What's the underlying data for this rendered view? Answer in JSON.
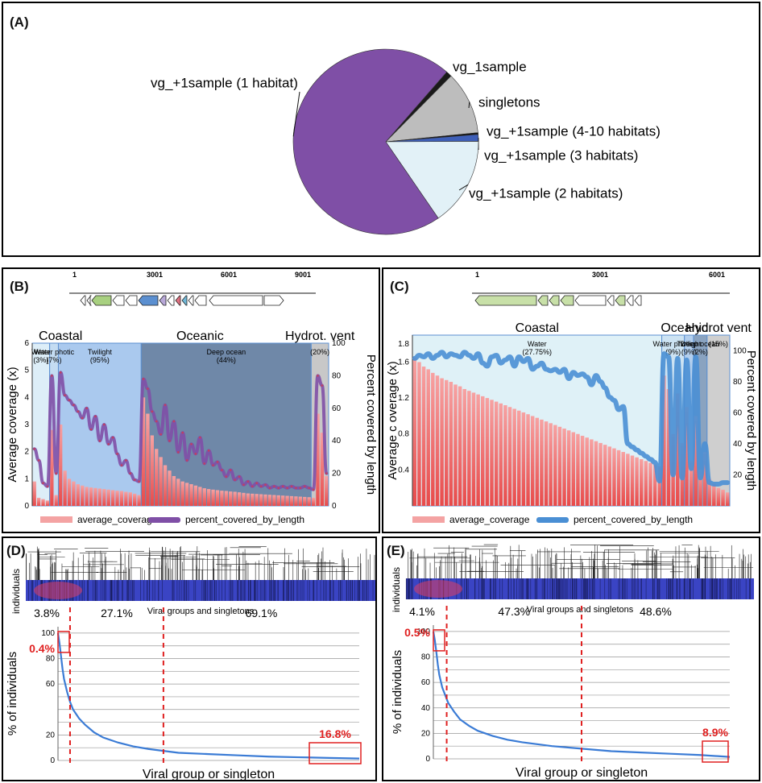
{
  "panels": {
    "A": {
      "label": "(A)"
    },
    "B": {
      "label": "(B)"
    },
    "C": {
      "label": "(C)"
    },
    "D": {
      "label": "(D)"
    },
    "E": {
      "label": "(E)"
    }
  },
  "chart_data": [
    {
      "id": "A",
      "type": "pie",
      "slices": [
        {
          "label": "vg_1sample",
          "value": 1.0,
          "color": "#1a1a1a"
        },
        {
          "label": "singletons",
          "value": 11.0,
          "color": "#bdbdbd"
        },
        {
          "label": "vg_+1sample (4-10 habitats)",
          "value": 0.3,
          "color": "#111111"
        },
        {
          "label": "vg_+1sample (3 habitats)",
          "value": 1.2,
          "color": "#3e5fb8"
        },
        {
          "label": "vg_+1sample (2 habitats)",
          "value": 15.5,
          "color": "#e2f1f7"
        },
        {
          "label": "vg_+1sample (1 habitat)",
          "value": 71.0,
          "color": "#7f4fa6"
        }
      ]
    },
    {
      "id": "B",
      "type": "bar",
      "genome_ticks": [
        "1",
        "3001",
        "6001",
        "9001"
      ],
      "habitats": [
        {
          "name": "Coastal",
          "from": 0,
          "to": 13
        },
        {
          "name": "Oceanic",
          "from": 13,
          "to": 64
        },
        {
          "name": "Hydrot. vent",
          "from": 64,
          "to": 68
        }
      ],
      "zones": [
        {
          "label": "Water (3%)",
          "from": 0,
          "to": 4,
          "color": "#ddeef8"
        },
        {
          "label": "Water photic (7%)",
          "from": 4,
          "to": 6,
          "color": "#c4dcf2"
        },
        {
          "label": "Twilight (95%)",
          "from": 6,
          "to": 25,
          "color": "#aac9ee"
        },
        {
          "label": "Deep ocean (44%)",
          "from": 25,
          "to": 64,
          "color": "#6f88a8"
        },
        {
          "label": "(20%)",
          "from": 64,
          "to": 68,
          "color": "#c8c8c8"
        }
      ],
      "ylabel": "Average coverage (x)",
      "y2label": "Percent covered by length",
      "ylim": [
        0,
        6
      ],
      "yticks": [
        0,
        1,
        2,
        3,
        4,
        5,
        6
      ],
      "y2lim": [
        0,
        100
      ],
      "y2ticks": [
        0,
        20,
        40,
        60,
        80,
        100
      ],
      "series": [
        {
          "name": "average_coverage",
          "color": "#f07070",
          "values": [
            0.9,
            0.3,
            0.25,
            0.2,
            2.8,
            0.4,
            3.0,
            1.3,
            1.0,
            0.9,
            0.8,
            0.75,
            0.7,
            0.68,
            0.66,
            0.64,
            0.62,
            0.6,
            0.58,
            0.56,
            0.55,
            0.52,
            0.5,
            0.45,
            0.4,
            4.0,
            3.4,
            2.6,
            2.1,
            1.8,
            1.5,
            1.3,
            1.1,
            1.0,
            0.9,
            0.85,
            0.8,
            0.75,
            0.7,
            0.65,
            0.62,
            0.6,
            0.58,
            0.56,
            0.55,
            0.53,
            0.52,
            0.5,
            0.48,
            0.46,
            0.45,
            0.44,
            0.43,
            0.42,
            0.41,
            0.4,
            0.39,
            0.38,
            0.37,
            0.36,
            0.35,
            0.34,
            0.33,
            0.32,
            0.3,
            3.4,
            2.7,
            1.1
          ]
        },
        {
          "name": "percent_covered_by_length",
          "color": "#7f4fa6",
          "values": [
            35,
            28,
            14,
            12,
            80,
            20,
            82,
            68,
            65,
            62,
            58,
            54,
            60,
            47,
            55,
            40,
            50,
            38,
            42,
            32,
            25,
            28,
            20,
            16,
            15,
            78,
            72,
            58,
            52,
            44,
            62,
            40,
            52,
            33,
            45,
            28,
            38,
            32,
            42,
            26,
            34,
            25,
            27,
            22,
            18,
            22,
            16,
            18,
            13,
            15,
            12,
            14,
            12,
            13,
            11,
            12,
            11,
            12,
            11,
            12,
            11,
            11,
            12,
            11,
            10,
            80,
            74,
            20
          ]
        }
      ],
      "legend": [
        "average_coverage",
        "percent_covered_by_length"
      ]
    },
    {
      "id": "C",
      "type": "bar",
      "genome_ticks": [
        "1",
        "3001",
        "6001"
      ],
      "habitats": [
        {
          "name": "Coastal",
          "from": 0,
          "to": 55
        },
        {
          "name": "Oceanic",
          "from": 55,
          "to": 65
        },
        {
          "name": "Hydrot vent",
          "from": 65,
          "to": 70
        }
      ],
      "zones": [
        {
          "label": "Water (27.75%)",
          "from": 0,
          "to": 55,
          "color": "#dff1f7"
        },
        {
          "label": "Water photic (9%)",
          "from": 55,
          "to": 60,
          "color": "#cde3f3"
        },
        {
          "label": "Twilight (9%)",
          "from": 60,
          "to": 62,
          "color": "#b3cfee"
        },
        {
          "label": "Deep ocean (2%)",
          "from": 62,
          "to": 65,
          "color": "#8aa3c0"
        },
        {
          "label": "(15%)",
          "from": 65,
          "to": 70,
          "color": "#cfcfcf"
        }
      ],
      "ylabel": "Average c overage (x)",
      "y2label": "Percent covered by length",
      "ylim": [
        0,
        1.9
      ],
      "yticks": [
        0.4,
        0.8,
        1.2,
        1.6,
        1.8
      ],
      "y2lim": [
        0,
        110
      ],
      "y2ticks": [
        20,
        40,
        60,
        80,
        100
      ],
      "series": [
        {
          "name": "average_coverage",
          "color": "#f07070",
          "values": [
            1.65,
            1.6,
            1.55,
            1.52,
            1.48,
            1.45,
            1.42,
            1.4,
            1.38,
            1.35,
            1.33,
            1.3,
            1.28,
            1.26,
            1.24,
            1.22,
            1.2,
            1.18,
            1.16,
            1.14,
            1.12,
            1.1,
            1.08,
            1.06,
            1.04,
            1.02,
            1.0,
            0.98,
            0.96,
            0.94,
            0.92,
            0.9,
            0.88,
            0.86,
            0.84,
            0.82,
            0.8,
            0.78,
            0.76,
            0.74,
            0.72,
            0.7,
            0.68,
            0.66,
            0.64,
            0.62,
            0.6,
            0.58,
            0.56,
            0.54,
            0.52,
            0.5,
            0.48,
            0.46,
            0.44,
            1.45,
            1.3,
            0.8,
            1.25,
            0.7,
            1.1,
            0.5,
            1.0,
            0.4,
            0.6,
            0.3,
            0.25,
            0.2,
            0.18,
            0.15
          ]
        },
        {
          "name": "percent_covered_by_length",
          "color": "#4a8fd4",
          "values": [
            95,
            97,
            96,
            98,
            95,
            97,
            99,
            96,
            98,
            97,
            96,
            99,
            97,
            95,
            98,
            92,
            90,
            96,
            97,
            92,
            94,
            96,
            90,
            96,
            93,
            95,
            88,
            90,
            92,
            88,
            87,
            88,
            86,
            88,
            82,
            86,
            84,
            85,
            83,
            78,
            84,
            80,
            76,
            70,
            68,
            62,
            64,
            40,
            38,
            36,
            34,
            32,
            30,
            28,
            16,
            98,
            96,
            20,
            95,
            18,
            94,
            24,
            96,
            18,
            40,
            15,
            14,
            14,
            15,
            15
          ]
        }
      ],
      "legend": [
        "average_coverage",
        "percent_covered_by_length"
      ]
    },
    {
      "id": "D",
      "type": "line",
      "heatmap_ylabel": "individuals",
      "heatmap_xlabel": "Viral groups and singletons",
      "segment_labels": [
        "3.8%",
        "27.1%",
        "69.1%"
      ],
      "box_labels": [
        "0.4%",
        "16.8%"
      ],
      "xlabel": "Viral group or singleton",
      "ylabel": "% of individuals",
      "yticks": [
        0,
        20,
        60,
        80,
        100
      ],
      "ylim": [
        0,
        105
      ],
      "dividers": [
        0.04,
        0.35
      ],
      "x": [
        0,
        0.005,
        0.01,
        0.015,
        0.02,
        0.03,
        0.04,
        0.05,
        0.07,
        0.09,
        0.12,
        0.15,
        0.2,
        0.25,
        0.3,
        0.4,
        0.5,
        0.6,
        0.7,
        0.8,
        0.9,
        1.0
      ],
      "values": [
        100,
        92,
        82,
        72,
        64,
        54,
        46,
        40,
        33,
        28,
        22,
        18,
        14,
        11,
        9,
        6,
        5,
        4,
        3,
        2.5,
        2,
        1.5
      ],
      "color": "#3a7bd5"
    },
    {
      "id": "E",
      "type": "line",
      "heatmap_ylabel": "individuals",
      "heatmap_xlabel": "Viral groups and singletons",
      "segment_labels": [
        "4.1%",
        "47.3%",
        "48.6%"
      ],
      "box_labels": [
        "0.5%",
        "8.9%"
      ],
      "xlabel": "Viral group or singleton",
      "ylabel": "% of individuals",
      "yticks": [
        0,
        20,
        40,
        60,
        80,
        100
      ],
      "ylim": [
        0,
        105
      ],
      "dividers": [
        0.045,
        0.5
      ],
      "x": [
        0,
        0.005,
        0.01,
        0.015,
        0.02,
        0.03,
        0.04,
        0.05,
        0.07,
        0.09,
        0.12,
        0.15,
        0.2,
        0.25,
        0.3,
        0.4,
        0.5,
        0.6,
        0.7,
        0.8,
        0.9,
        1.0
      ],
      "values": [
        100,
        93,
        84,
        74,
        66,
        56,
        50,
        44,
        37,
        31,
        26,
        22,
        18,
        15,
        13,
        10,
        8,
        6,
        5,
        4,
        3,
        1.5
      ],
      "color": "#3a7bd5"
    }
  ]
}
